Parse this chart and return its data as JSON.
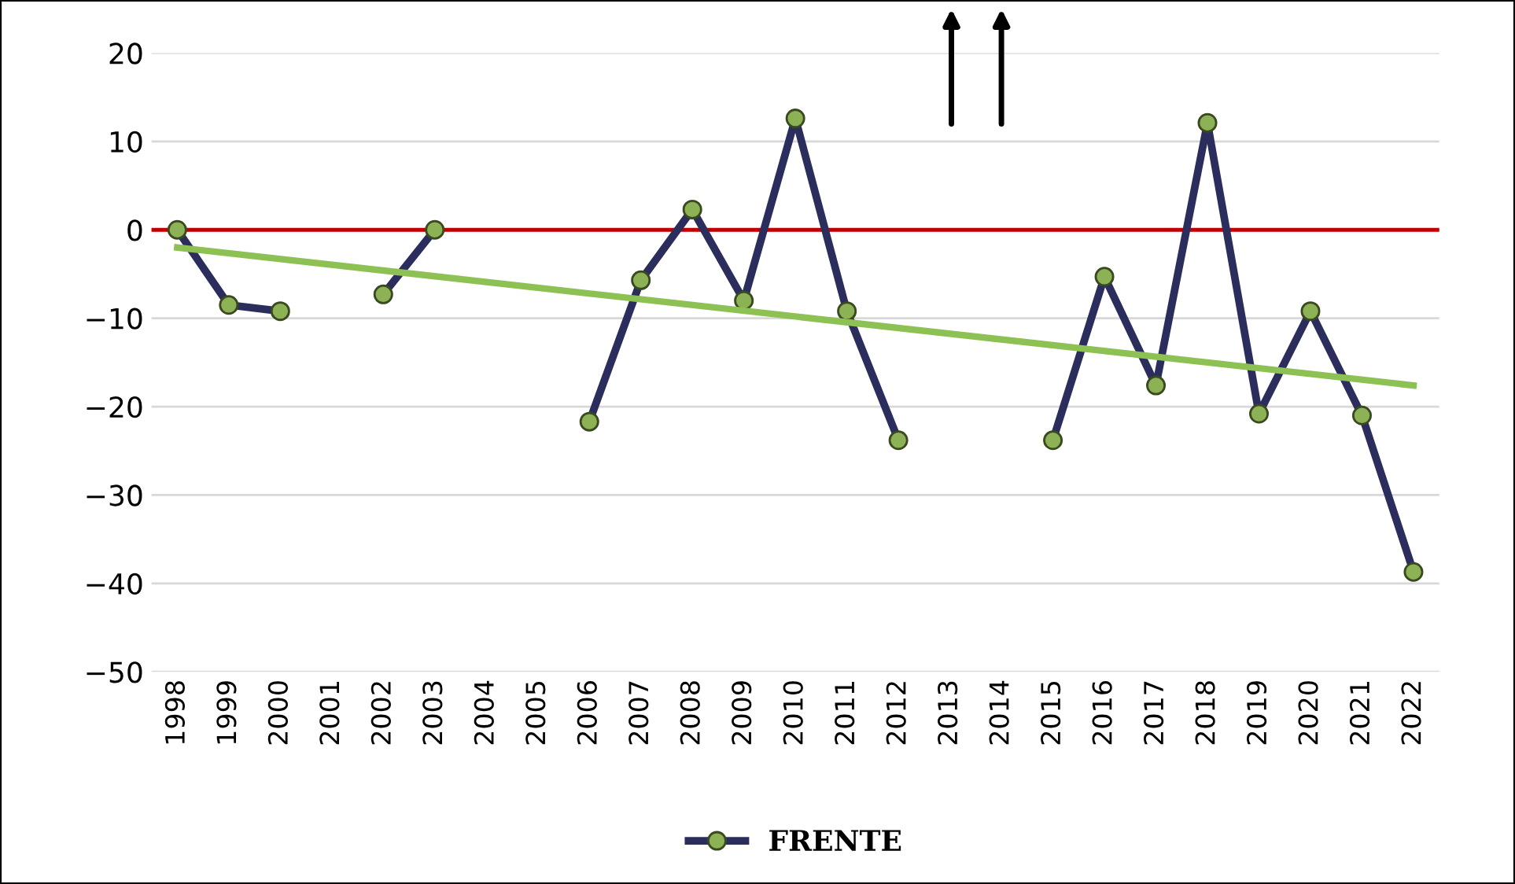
{
  "chart_data": {
    "type": "line",
    "categories": [
      "1998",
      "1999",
      "2000",
      "2001",
      "2002",
      "2003",
      "2004",
      "2005",
      "2006",
      "2007",
      "2008",
      "2009",
      "2010",
      "2011",
      "2012",
      "2013",
      "2014",
      "2015",
      "2016",
      "2017",
      "2018",
      "2019",
      "2020",
      "2021",
      "2022"
    ],
    "series": [
      {
        "name": "FRENTE",
        "color": "#2b2d5c",
        "values": [
          0,
          -8.5,
          -9.2,
          null,
          -7.3,
          0,
          null,
          null,
          -21.7,
          -5.7,
          2.3,
          -8,
          12.6,
          -9.2,
          -23.8,
          null,
          null,
          -23.8,
          -5.3,
          -17.6,
          12.1,
          -20.8,
          -9.2,
          -21,
          -38.7
        ]
      },
      {
        "type": "line",
        "color": "#8dc154",
        "values": [
          -2,
          null,
          null,
          null,
          null,
          null,
          null,
          null,
          null,
          null,
          null,
          null,
          null,
          null,
          null,
          null,
          null,
          null,
          null,
          null,
          null,
          null,
          null,
          null,
          -17.6
        ],
        "marker": "none"
      }
    ],
    "marker": "circle",
    "ylim": [
      -50,
      20
    ],
    "yticks": [
      -50,
      -40,
      -30,
      -20,
      -10,
      0,
      10,
      20
    ],
    "grid": "y",
    "legend": "bottom",
    "ref_lines": [
      {
        "axis": "y",
        "value": 0,
        "color": "#c00000"
      }
    ]
  }
}
